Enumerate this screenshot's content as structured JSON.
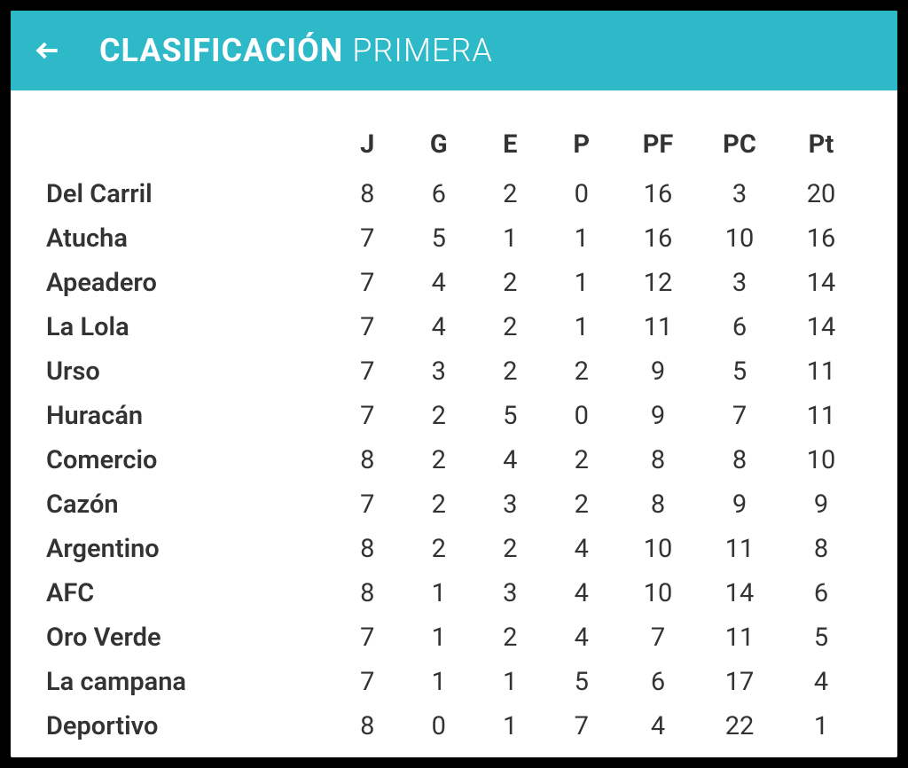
{
  "colors": {
    "header_bg": "#2eb9c9",
    "header_text": "#ffffff",
    "body_bg": "#ffffff",
    "frame_bg": "#000000",
    "text": "#333333"
  },
  "header": {
    "title_bold": "CLASIFICACIÓN",
    "title_light": "PRIMERA"
  },
  "table": {
    "columns": [
      "",
      "J",
      "G",
      "E",
      "P",
      "PF",
      "PC",
      "Pt"
    ],
    "rows": [
      {
        "team": "Del Carril",
        "j": 8,
        "g": 6,
        "e": 2,
        "p": 0,
        "pf": 16,
        "pc": 3,
        "pt": 20
      },
      {
        "team": "Atucha",
        "j": 7,
        "g": 5,
        "e": 1,
        "p": 1,
        "pf": 16,
        "pc": 10,
        "pt": 16
      },
      {
        "team": "Apeadero",
        "j": 7,
        "g": 4,
        "e": 2,
        "p": 1,
        "pf": 12,
        "pc": 3,
        "pt": 14
      },
      {
        "team": "La Lola",
        "j": 7,
        "g": 4,
        "e": 2,
        "p": 1,
        "pf": 11,
        "pc": 6,
        "pt": 14
      },
      {
        "team": "Urso",
        "j": 7,
        "g": 3,
        "e": 2,
        "p": 2,
        "pf": 9,
        "pc": 5,
        "pt": 11
      },
      {
        "team": "Huracán",
        "j": 7,
        "g": 2,
        "e": 5,
        "p": 0,
        "pf": 9,
        "pc": 7,
        "pt": 11
      },
      {
        "team": "Comercio",
        "j": 8,
        "g": 2,
        "e": 4,
        "p": 2,
        "pf": 8,
        "pc": 8,
        "pt": 10
      },
      {
        "team": "Cazón",
        "j": 7,
        "g": 2,
        "e": 3,
        "p": 2,
        "pf": 8,
        "pc": 9,
        "pt": 9
      },
      {
        "team": "Argentino",
        "j": 8,
        "g": 2,
        "e": 2,
        "p": 4,
        "pf": 10,
        "pc": 11,
        "pt": 8
      },
      {
        "team": "AFC",
        "j": 8,
        "g": 1,
        "e": 3,
        "p": 4,
        "pf": 10,
        "pc": 14,
        "pt": 6
      },
      {
        "team": "Oro Verde",
        "j": 7,
        "g": 1,
        "e": 2,
        "p": 4,
        "pf": 7,
        "pc": 11,
        "pt": 5
      },
      {
        "team": "La campana",
        "j": 7,
        "g": 1,
        "e": 1,
        "p": 5,
        "pf": 6,
        "pc": 17,
        "pt": 4
      },
      {
        "team": "Deportivo",
        "j": 8,
        "g": 0,
        "e": 1,
        "p": 7,
        "pf": 4,
        "pc": 22,
        "pt": 1
      }
    ]
  }
}
